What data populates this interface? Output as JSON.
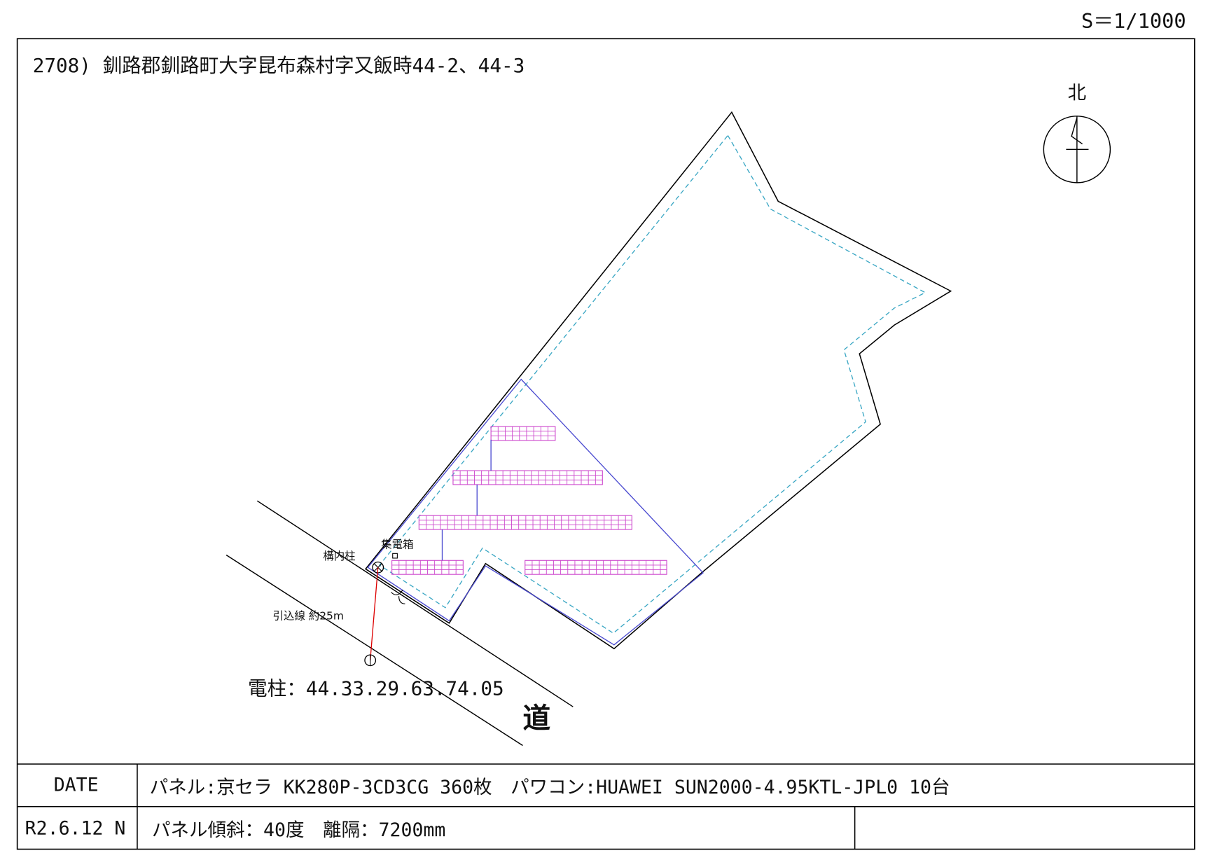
{
  "scale_label": "S＝1/1000",
  "title": "2708) 釧路郡釧路町大字昆布森村字又飯時44-2、44-3",
  "north_label": "北",
  "labels": {
    "yard_pole": "構内柱",
    "junction_box": "集電箱",
    "service_line": "引込線 約25m",
    "utility_pole": "電柱：44.33.29.63.74.05",
    "road": "道"
  },
  "footer": {
    "date_header": "DATE",
    "date_value": "R2.6.12 N",
    "line1": "パネル:京セラ KK280P-3CD3CG 360枚　パワコン:HUAWEI SUN2000-4.95KTL-JPL0 10台",
    "line2": "パネル傾斜：40度　離隔：7200mm",
    "line2_right": ""
  },
  "colors": {
    "boundary": "#000000",
    "setback": "#3aa7c4",
    "fence": "#4a4ad0",
    "panel": "#cc44cc",
    "service_line": "#dd0000"
  },
  "icons": [
    "north-arrow-icon",
    "yard-pole-icon",
    "utility-pole-icon",
    "junction-box-icon",
    "gate-icon"
  ]
}
